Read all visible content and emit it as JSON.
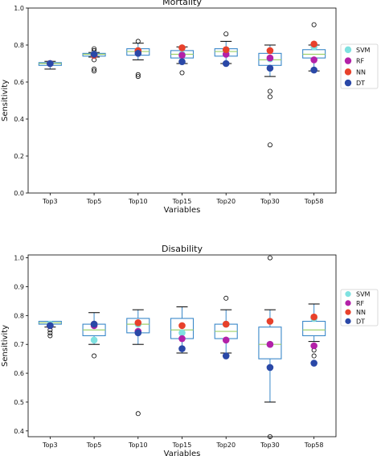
{
  "chart_data": [
    {
      "type": "box",
      "title": "Mortality",
      "xlabel": "Variables",
      "ylabel": "Sensitivity",
      "ylim": [
        0.0,
        1.0
      ],
      "yticks": [
        "0.0",
        "0.2",
        "0.4",
        "0.6",
        "0.8",
        "1.0"
      ],
      "ytick_values": [
        0.0,
        0.2,
        0.4,
        0.6,
        0.8,
        1.0
      ],
      "categories": [
        "Top3",
        "Top5",
        "Top10",
        "Top15",
        "Top20",
        "Top30",
        "Top58"
      ],
      "legend": {
        "placement": "right",
        "entries": [
          "SVM",
          "RF",
          "NN",
          "DT"
        ]
      },
      "colors": {
        "SVM": "#7fe1e0",
        "RF": "#b321a8",
        "NN": "#e8412b",
        "DT": "#2a48a7",
        "box": "#3a88c9",
        "median": "#9fd06b"
      },
      "boxes": [
        {
          "q1": 0.69,
          "median": 0.7,
          "q3": 0.705,
          "whisker_low": 0.67,
          "whisker_high": 0.712,
          "outliers": []
        },
        {
          "q1": 0.74,
          "median": 0.75,
          "q3": 0.755,
          "whisker_low": 0.735,
          "whisker_high": 0.76,
          "outliers": [
            0.77,
            0.78,
            0.72,
            0.67,
            0.66
          ]
        },
        {
          "q1": 0.745,
          "median": 0.765,
          "q3": 0.78,
          "whisker_low": 0.72,
          "whisker_high": 0.81,
          "outliers": [
            0.82,
            0.64,
            0.63
          ]
        },
        {
          "q1": 0.73,
          "median": 0.75,
          "q3": 0.77,
          "whisker_low": 0.7,
          "whisker_high": 0.79,
          "outliers": [
            0.65
          ]
        },
        {
          "q1": 0.74,
          "median": 0.765,
          "q3": 0.78,
          "whisker_low": 0.7,
          "whisker_high": 0.82,
          "outliers": [
            0.86
          ]
        },
        {
          "q1": 0.69,
          "median": 0.72,
          "q3": 0.755,
          "whisker_low": 0.63,
          "whisker_high": 0.8,
          "outliers": [
            0.55,
            0.52,
            0.26
          ]
        },
        {
          "q1": 0.73,
          "median": 0.75,
          "q3": 0.775,
          "whisker_low": 0.66,
          "whisker_high": 0.8,
          "outliers": [
            0.91
          ]
        }
      ],
      "series": [
        {
          "name": "SVM",
          "values": [
            0.7,
            0.75,
            0.77,
            0.75,
            0.77,
            0.725,
            0.79
          ]
        },
        {
          "name": "RF",
          "values": [
            0.7,
            0.745,
            0.765,
            0.745,
            0.75,
            0.73,
            0.72
          ]
        },
        {
          "name": "NN",
          "values": [
            0.7,
            0.745,
            0.77,
            0.785,
            0.775,
            0.77,
            0.805
          ]
        },
        {
          "name": "DT",
          "values": [
            0.7,
            0.75,
            0.755,
            0.71,
            0.7,
            0.675,
            0.665
          ]
        }
      ]
    },
    {
      "type": "box",
      "title": "Disability",
      "xlabel": "Variables",
      "ylabel": "Sensitivity",
      "ylim": [
        0.38,
        1.01
      ],
      "yticks": [
        "0.4",
        "0.5",
        "0.6",
        "0.7",
        "0.8",
        "0.9",
        "1.0"
      ],
      "ytick_values": [
        0.4,
        0.5,
        0.6,
        0.7,
        0.8,
        0.9,
        1.0
      ],
      "categories": [
        "Top3",
        "Top5",
        "Top10",
        "Top15",
        "Top20",
        "Top30",
        "Top58"
      ],
      "legend": {
        "placement": "right",
        "entries": [
          "SVM",
          "RF",
          "NN",
          "DT"
        ]
      },
      "colors": {
        "SVM": "#7fe1e0",
        "RF": "#b321a8",
        "NN": "#e8412b",
        "DT": "#2a48a7",
        "box": "#3a88c9",
        "median": "#9fd06b"
      },
      "boxes": [
        {
          "q1": 0.77,
          "median": 0.775,
          "q3": 0.78,
          "whisker_low": 0.76,
          "whisker_high": 0.78,
          "outliers": [
            0.75,
            0.74,
            0.73
          ]
        },
        {
          "q1": 0.73,
          "median": 0.75,
          "q3": 0.77,
          "whisker_low": 0.7,
          "whisker_high": 0.81,
          "outliers": [
            0.66
          ]
        },
        {
          "q1": 0.74,
          "median": 0.77,
          "q3": 0.79,
          "whisker_low": 0.7,
          "whisker_high": 0.82,
          "outliers": [
            0.46
          ]
        },
        {
          "q1": 0.72,
          "median": 0.75,
          "q3": 0.79,
          "whisker_low": 0.67,
          "whisker_high": 0.83,
          "outliers": []
        },
        {
          "q1": 0.72,
          "median": 0.745,
          "q3": 0.77,
          "whisker_low": 0.67,
          "whisker_high": 0.82,
          "outliers": [
            0.86
          ]
        },
        {
          "q1": 0.65,
          "median": 0.7,
          "q3": 0.76,
          "whisker_low": 0.5,
          "whisker_high": 0.82,
          "outliers": [
            1.0,
            0.38
          ]
        },
        {
          "q1": 0.73,
          "median": 0.75,
          "q3": 0.78,
          "whisker_low": 0.71,
          "whisker_high": 0.84,
          "outliers": [
            0.68,
            0.66
          ]
        }
      ],
      "series": [
        {
          "name": "SVM",
          "values": [
            0.77,
            0.715,
            0.77,
            0.74,
            0.77,
            0.7,
            0.79
          ]
        },
        {
          "name": "RF",
          "values": [
            0.765,
            0.765,
            0.745,
            0.72,
            0.715,
            0.7,
            0.695
          ]
        },
        {
          "name": "NN",
          "values": [
            0.765,
            0.77,
            0.775,
            0.765,
            0.77,
            0.78,
            0.795
          ]
        },
        {
          "name": "DT",
          "values": [
            0.765,
            0.77,
            0.74,
            0.685,
            0.66,
            0.62,
            0.635
          ]
        }
      ]
    }
  ]
}
